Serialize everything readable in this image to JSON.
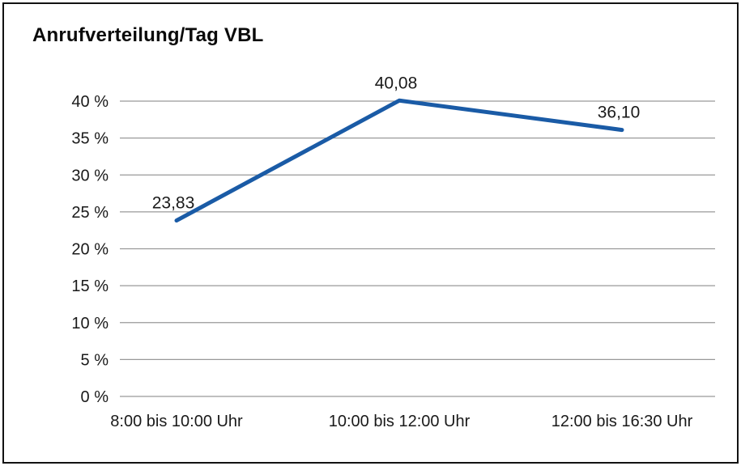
{
  "title": "Anrufverteilung/Tag VBL",
  "chart_data": {
    "type": "line",
    "title": "Anrufverteilung/Tag VBL",
    "categories": [
      "8:00 bis 10:00 Uhr",
      "10:00 bis 12:00 Uhr",
      "12:00 bis 16:30 Uhr"
    ],
    "values": [
      23.83,
      40.08,
      36.1
    ],
    "value_labels": [
      "23,83",
      "40,08",
      "36,10"
    ],
    "xlabel": "",
    "ylabel": "",
    "ylim": [
      0,
      40
    ],
    "ytick_step": 5,
    "ytick_labels": [
      "0 %",
      "5 %",
      "10 %",
      "15 %",
      "20 %",
      "25 %",
      "30 %",
      "35 %",
      "40 %"
    ],
    "grid": true,
    "legend": "none",
    "colors": {
      "line": "#1a5ba6",
      "grid": "#999999",
      "text": "#1a1a1a",
      "border": "#121212"
    }
  }
}
